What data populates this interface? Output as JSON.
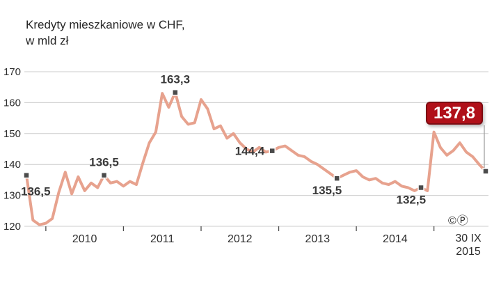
{
  "title": {
    "line1": "Kredyty mieszkaniowe w CHF,",
    "line2": "w mld zł"
  },
  "copyright": "©Ⓟ",
  "colors": {
    "line": "#e7a28e",
    "marker_fill": "#4b4b4b",
    "marker_stroke": "#ffffff",
    "grid": "#cccccc",
    "tick": "#4b4b4b",
    "axis_text": "#2d2d2d",
    "label_text": "#3a3a3a",
    "badge_bg": "#b01019",
    "badge_border": "#7c0c12",
    "badge_text": "#ffffff",
    "leader": "#9a9a9a"
  },
  "chart_data": {
    "type": "line",
    "title": "Kredyty mieszkaniowe w CHF, w mld zł",
    "unit": "mld zł",
    "ylim": [
      120,
      170
    ],
    "yticks": [
      120,
      130,
      140,
      150,
      160,
      170
    ],
    "x_frequency": "monthly",
    "x_start": "2009-10",
    "x_end": "2015-09",
    "grid": "horizontal",
    "values": [
      136.5,
      122.0,
      120.5,
      121.0,
      122.5,
      131.0,
      137.5,
      130.5,
      136.0,
      131.5,
      134.0,
      132.5,
      136.5,
      134.0,
      134.5,
      133.0,
      134.5,
      133.5,
      140.5,
      147.0,
      150.5,
      163.0,
      158.5,
      163.3,
      155.5,
      153.0,
      153.5,
      161.0,
      158.0,
      151.5,
      152.5,
      148.5,
      150.0,
      147.0,
      145.0,
      144.0,
      145.5,
      144.0,
      144.4,
      145.5,
      146.0,
      144.5,
      143.0,
      142.5,
      141.0,
      140.0,
      138.5,
      137.0,
      135.5,
      136.5,
      137.5,
      138.0,
      136.0,
      135.0,
      135.5,
      134.0,
      133.5,
      134.5,
      133.0,
      132.5,
      131.5,
      132.5,
      131.5,
      150.5,
      145.5,
      143.0,
      144.5,
      147.0,
      144.0,
      142.5,
      140.0,
      137.8
    ],
    "annotations": [
      {
        "index": 0,
        "label": "136,5",
        "position": "below-start"
      },
      {
        "index": 12,
        "label": "136,5",
        "position": "above"
      },
      {
        "index": 23,
        "label": "163,3",
        "position": "above"
      },
      {
        "index": 38,
        "label": "144,4",
        "position": "left"
      },
      {
        "index": 48,
        "label": "135,5",
        "position": "below-left"
      },
      {
        "index": 61,
        "label": "132,5",
        "position": "below-left"
      },
      {
        "index": 71,
        "label": "137,8",
        "position": "badge"
      }
    ],
    "final_label": "137,8",
    "x_tick_indices": [
      3,
      15,
      27,
      39,
      51,
      63
    ],
    "x_year_labels": [
      {
        "label": "2010",
        "center_index": 9
      },
      {
        "label": "2011",
        "center_index": 21
      },
      {
        "label": "2012",
        "center_index": 33
      },
      {
        "label": "2013",
        "center_index": 45
      },
      {
        "label": "2014",
        "center_index": 57
      }
    ],
    "x_end_label": {
      "line1": "30 IX",
      "line2": "2015"
    }
  }
}
